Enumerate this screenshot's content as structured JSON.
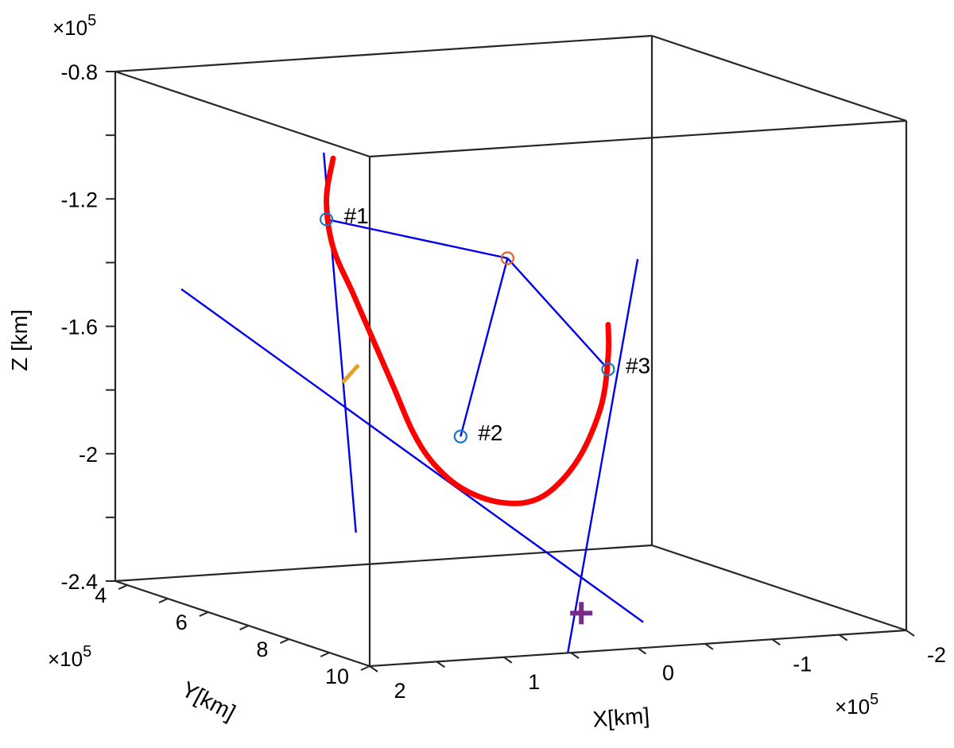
{
  "chart_data": {
    "type": "line",
    "projection": "3d",
    "title": "",
    "xlabel": "X[km]",
    "ylabel": "Y[km]",
    "zlabel": "Z [km]",
    "x_exponent": "×10^5",
    "y_exponent": "×10^5",
    "z_exponent": "×10^5",
    "x_ticks": [
      {
        "value": 2,
        "label": "2"
      },
      {
        "value": 1,
        "label": "1"
      },
      {
        "value": 0,
        "label": "0"
      },
      {
        "value": -1,
        "label": "-1"
      },
      {
        "value": -2,
        "label": "-2"
      }
    ],
    "y_ticks": [
      {
        "value": 4,
        "label": "4"
      },
      {
        "value": 6,
        "label": "6"
      },
      {
        "value": 8,
        "label": "8"
      },
      {
        "value": 10,
        "label": "10"
      }
    ],
    "z_ticks": [
      {
        "value": -0.8,
        "label": "-0.8"
      },
      {
        "value": -1.2,
        "label": "-1.2"
      },
      {
        "value": -1.6,
        "label": "-1.6"
      },
      {
        "value": -2.0,
        "label": "-2"
      },
      {
        "value": -2.4,
        "label": "-2.4"
      }
    ],
    "grid": false,
    "legend": "none",
    "series": [
      {
        "kind": "trajectory",
        "color": "#ff0000",
        "points": [
          [
            1.55,
            7.6,
            -0.92
          ],
          [
            1.6,
            7.6,
            -1.05
          ],
          [
            1.55,
            7.6,
            -1.2
          ],
          [
            1.4,
            7.6,
            -1.35
          ],
          [
            1.25,
            7.6,
            -1.5
          ],
          [
            1.1,
            7.6,
            -1.65
          ],
          [
            0.95,
            7.6,
            -1.8
          ],
          [
            0.8,
            7.6,
            -1.9
          ],
          [
            0.6,
            7.6,
            -1.98
          ],
          [
            0.35,
            7.6,
            -2.03
          ],
          [
            0.1,
            7.6,
            -2.04
          ],
          [
            -0.1,
            7.6,
            -2.0
          ],
          [
            -0.3,
            7.6,
            -1.9
          ],
          [
            -0.45,
            7.6,
            -1.75
          ],
          [
            -0.5,
            7.6,
            -1.6
          ],
          [
            -0.5,
            7.6,
            -1.5
          ]
        ]
      },
      {
        "kind": "lines",
        "color": "#0000ee",
        "segments": [
          [
            [
              1.62,
              7.6,
              -0.9
            ],
            [
              1.38,
              7.6,
              -2.1
            ]
          ],
          [
            [
              2.2,
              6.0,
              -1.38
            ],
            [
              -0.4,
              8.8,
              -2.38
            ]
          ],
          [
            [
              -0.72,
              7.6,
              -1.3
            ],
            [
              -0.2,
              7.6,
              -2.52
            ]
          ],
          [
            [
              1.6,
              7.6,
              -1.11
            ],
            [
              0.25,
              7.6,
              -1.27
            ]
          ],
          [
            [
              0.25,
              7.6,
              -1.27
            ],
            [
              -0.5,
              7.6,
              -1.64
            ]
          ],
          [
            [
              0.25,
              7.6,
              -1.27
            ],
            [
              0.6,
              7.6,
              -1.82
            ]
          ]
        ]
      }
    ],
    "markers": [
      {
        "label": "#1",
        "point": [
          1.6,
          7.6,
          -1.11
        ],
        "shape": "circle",
        "color": "#1a78c8"
      },
      {
        "label": "#2",
        "point": [
          0.6,
          7.6,
          -1.82
        ],
        "shape": "circle",
        "color": "#1a78c8"
      },
      {
        "label": "#3",
        "point": [
          -0.5,
          7.6,
          -1.64
        ],
        "shape": "circle",
        "color": "#1a78c8"
      },
      {
        "label": "",
        "point": [
          0.25,
          7.6,
          -1.27
        ],
        "shape": "circle",
        "color": "#e0602a"
      },
      {
        "label": "",
        "point": [
          1.42,
          7.6,
          -1.6
        ],
        "shape": "x",
        "color": "#e8a020"
      },
      {
        "label": "",
        "point": [
          -0.3,
          7.6,
          -2.4
        ],
        "shape": "plus",
        "color": "#7a2a8a"
      }
    ]
  }
}
